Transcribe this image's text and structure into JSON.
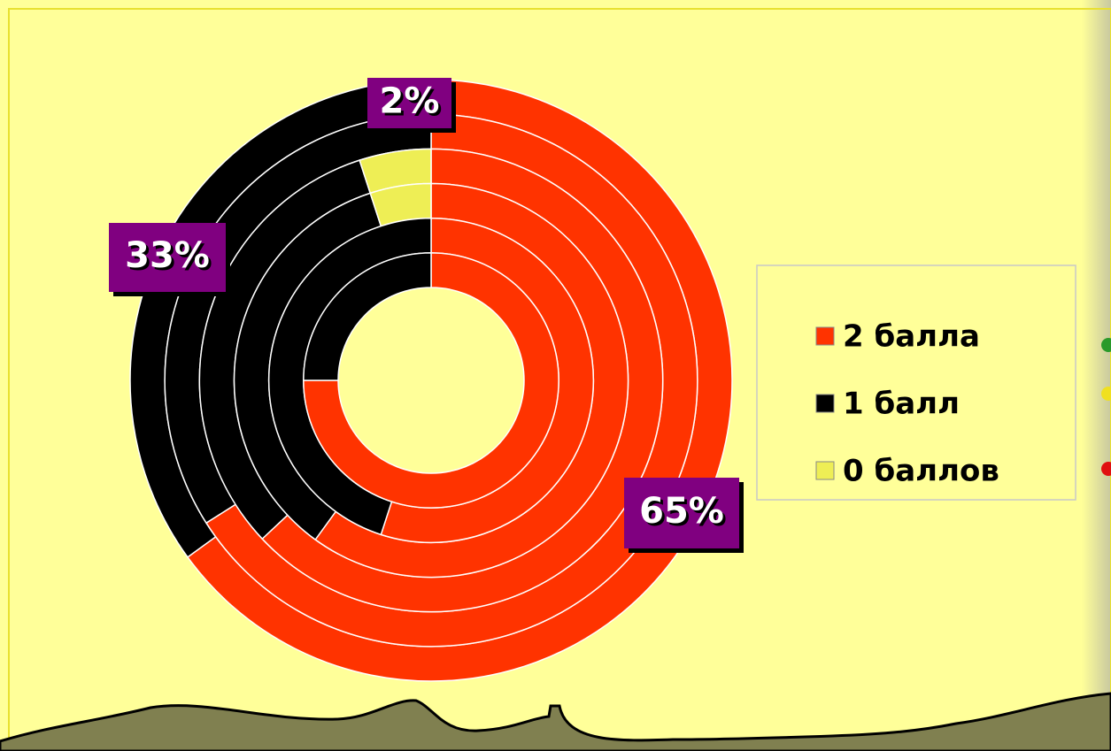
{
  "chart_data": {
    "type": "doughnut",
    "series": [
      {
        "name": "2 балла",
        "color": "#ff3300",
        "values": [
          65,
          66,
          63,
          60,
          55,
          75
        ],
        "value_labels": [
          "65%"
        ]
      },
      {
        "name": "1 балл",
        "color": "#000000",
        "values": [
          33,
          34,
          32,
          35,
          45,
          25
        ],
        "value_labels": [
          "33%"
        ]
      },
      {
        "name": "0 баллов",
        "color": "#eeee55",
        "values": [
          2,
          0,
          5,
          5,
          0,
          0
        ],
        "value_labels": [
          "2%"
        ]
      }
    ]
  }
}
